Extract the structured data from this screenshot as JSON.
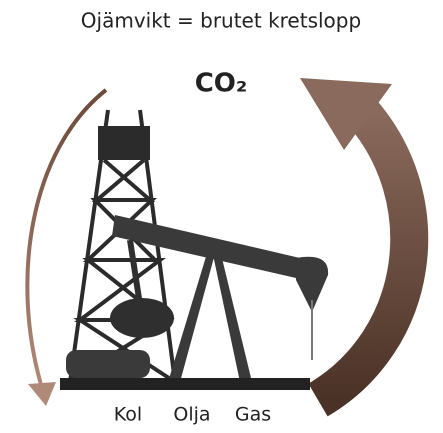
{
  "title": "Ojämvikt = brutet kretslopp",
  "center_label": "CO₂",
  "labels": [
    "Kol",
    "Olja",
    "Gas"
  ]
}
